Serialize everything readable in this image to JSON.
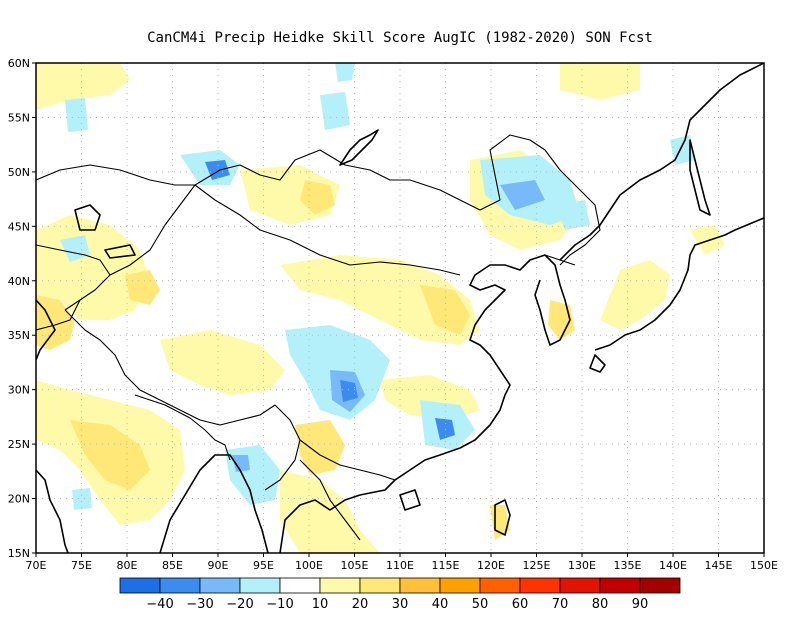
{
  "title": "CanCM4i Precip Heidke Skill Score AugIC (1982-2020) SON Fcst",
  "map": {
    "lon_range": [
      70,
      150
    ],
    "lat_range": [
      15,
      60
    ],
    "x_tick_labels": [
      "70E",
      "75E",
      "80E",
      "85E",
      "90E",
      "95E",
      "100E",
      "105E",
      "110E",
      "115E",
      "120E",
      "125E",
      "130E",
      "135E",
      "140E",
      "145E",
      "150E"
    ],
    "y_tick_labels": [
      "15N",
      "20N",
      "25N",
      "30N",
      "35N",
      "40N",
      "45N",
      "50N",
      "55N",
      "60N"
    ]
  },
  "colorbar": {
    "labels": [
      "-40",
      "-30",
      "-20",
      "-10",
      "10",
      "20",
      "30",
      "40",
      "50",
      "60",
      "70",
      "80",
      "90"
    ],
    "colors": [
      "#1e6ee6",
      "#3c8cf0",
      "#78b9f8",
      "#b4f0fa",
      "#ffffff",
      "#fffaaa",
      "#ffe878",
      "#ffc03c",
      "#ffa000",
      "#ff6000",
      "#ff3200",
      "#e11400",
      "#c00000",
      "#a50000"
    ]
  }
}
